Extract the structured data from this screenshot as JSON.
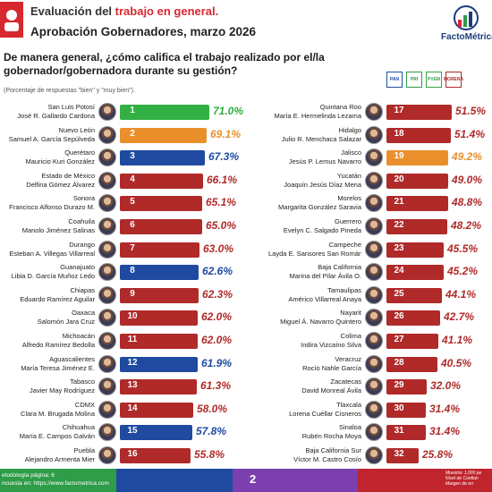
{
  "header": {
    "title_prefix": "Evaluación del ",
    "title_accent": "trabajo en general.",
    "subtitle": "Aprobación Gobernadores, marzo 2026",
    "brand": "FactoMétrica"
  },
  "question": {
    "text": "De manera general, ¿cómo califica el trabajo realizado por el/la gobernador/gobernadora durante su gestión?",
    "note": "(Porcentaje de respuestas \"bien\" y \"muy bien\")."
  },
  "party_legend": [
    {
      "label": "PAN",
      "color": "#1f4fa3"
    },
    {
      "label": "PRI",
      "color": "#2e9c48"
    },
    {
      "label": "PVEM",
      "color": "#35a546"
    },
    {
      "label": "MORENA",
      "color": "#b22a2a"
    }
  ],
  "colors": {
    "morena": "#b02a2a",
    "pan": "#1f4aa0",
    "mc": "#e9902c",
    "pvem": "#33b043",
    "pan_text": "#1f4aa0",
    "mc_text": "#e9902c",
    "morena_text": "#b02a2a",
    "pvem_text": "#2fae3e"
  },
  "chart_data": {
    "type": "bar",
    "ylabel": "",
    "xlabel": "",
    "ylim": [
      0,
      100
    ],
    "entries": [
      {
        "rank": "1",
        "state": "San Luis Potosí",
        "governor": "José R. Gallardo Cardona",
        "value": 71.0,
        "label": "71.0%",
        "party": "pvem"
      },
      {
        "rank": "2",
        "state": "Nuevo León",
        "governor": "Samuel A. García Sepúlveda",
        "value": 69.1,
        "label": "69.1%",
        "party": "mc"
      },
      {
        "rank": "3",
        "state": "Querétaro",
        "governor": "Mauricio Kuri González",
        "value": 67.3,
        "label": "67.3%",
        "party": "pan"
      },
      {
        "rank": "4",
        "state": "Estado de México",
        "governor": "Delfina Gómez Álvarez",
        "value": 66.1,
        "label": "66.1%",
        "party": "morena"
      },
      {
        "rank": "5",
        "state": "Sonora",
        "governor": "Francisco Alfonso Durazo M.",
        "value": 65.1,
        "label": "65.1%",
        "party": "morena"
      },
      {
        "rank": "6",
        "state": "Coahuila",
        "governor": "Manolo Jiménez Salinas",
        "value": 65.0,
        "label": "65.0%",
        "party": "morena"
      },
      {
        "rank": "7",
        "state": "Durango",
        "governor": "Esteban A. Villegas Villarreal",
        "value": 63.0,
        "label": "63.0%",
        "party": "morena"
      },
      {
        "rank": "8",
        "state": "Guanajuato",
        "governor": "Libia D. García Muñoz Ledo",
        "value": 62.6,
        "label": "62.6%",
        "party": "pan"
      },
      {
        "rank": "9",
        "state": "Chiapas",
        "governor": "Eduardo Ramírez Aguilar",
        "value": 62.3,
        "label": "62.3%",
        "party": "morena"
      },
      {
        "rank": "10",
        "state": "Oaxaca",
        "governor": "Salomón Jara Cruz",
        "value": 62.0,
        "label": "62.0%",
        "party": "morena"
      },
      {
        "rank": "11",
        "state": "Michoacán",
        "governor": "Alfredo Ramírez Bedolla",
        "value": 62.0,
        "label": "62.0%",
        "party": "morena"
      },
      {
        "rank": "12",
        "state": "Aguascalientes",
        "governor": "María Teresa Jiménez E.",
        "value": 61.9,
        "label": "61.9%",
        "party": "pan"
      },
      {
        "rank": "13",
        "state": "Tabasco",
        "governor": "Javier May Rodríguez",
        "value": 61.3,
        "label": "61.3%",
        "party": "morena"
      },
      {
        "rank": "14",
        "state": "CDMX",
        "governor": "Clara M. Brugada Molina",
        "value": 58.0,
        "label": "58.0%",
        "party": "morena"
      },
      {
        "rank": "15",
        "state": "Chihuahua",
        "governor": "María E. Campos Galván",
        "value": 57.8,
        "label": "57.8%",
        "party": "pan"
      },
      {
        "rank": "16",
        "state": "Puebla",
        "governor": "Alejandro Armenta Mier",
        "value": 55.8,
        "label": "55.8%",
        "party": "morena"
      },
      {
        "rank": "17",
        "state": "Quintana Roo",
        "governor": "María E. Hermelinda Lezama",
        "value": 51.5,
        "label": "51.5%",
        "party": "morena"
      },
      {
        "rank": "18",
        "state": "Hidalgo",
        "governor": "Julio R. Menchaca Salazar",
        "value": 51.4,
        "label": "51.4%",
        "party": "morena"
      },
      {
        "rank": "19",
        "state": "Jalisco",
        "governor": "Jesús P. Lemus Navarro",
        "value": 49.2,
        "label": "49.2%",
        "party": "mc"
      },
      {
        "rank": "20",
        "state": "Yucatán",
        "governor": "Joaquín Jesús Díaz Mena",
        "value": 49.0,
        "label": "49.0%",
        "party": "morena"
      },
      {
        "rank": "21",
        "state": "Morelos",
        "governor": "Margarita González Saravia",
        "value": 48.8,
        "label": "48.8%",
        "party": "morena"
      },
      {
        "rank": "22",
        "state": "Guerrero",
        "governor": "Evelyn C. Salgado Pineda",
        "value": 48.2,
        "label": "48.2%",
        "party": "morena"
      },
      {
        "rank": "23",
        "state": "Campeche",
        "governor": "Layda E. Sansores San Román",
        "value": 45.5,
        "label": "45.5%",
        "party": "morena"
      },
      {
        "rank": "24",
        "state": "Baja California",
        "governor": "Marina del Pilar Ávila O.",
        "value": 45.2,
        "label": "45.2%",
        "party": "morena"
      },
      {
        "rank": "25",
        "state": "Tamaulipas",
        "governor": "Américo Villarreal Anaya",
        "value": 44.1,
        "label": "44.1%",
        "party": "morena"
      },
      {
        "rank": "26",
        "state": "Nayarit",
        "governor": "Miguel Á. Navarro Quintero",
        "value": 42.7,
        "label": "42.7%",
        "party": "morena"
      },
      {
        "rank": "27",
        "state": "Colima",
        "governor": "Indira Vizcaíno Silva",
        "value": 41.1,
        "label": "41.1%",
        "party": "morena"
      },
      {
        "rank": "28",
        "state": "Veracruz",
        "governor": "Rocío Nahle García",
        "value": 40.5,
        "label": "40.5%",
        "party": "morena"
      },
      {
        "rank": "29",
        "state": "Zacatecas",
        "governor": "David Monreal Ávila",
        "value": 32.0,
        "label": "32.0%",
        "party": "morena"
      },
      {
        "rank": "30",
        "state": "Tlaxcala",
        "governor": "Lorena Cuéllar Cisneros",
        "value": 31.4,
        "label": "31.4%",
        "party": "morena"
      },
      {
        "rank": "31",
        "state": "Sinaloa",
        "governor": "Rubén Rocha Moya",
        "value": 31.4,
        "label": "31.4%",
        "party": "morena"
      },
      {
        "rank": "32",
        "state": "Baja California Sur",
        "governor": "Víctor M. Castro Cosío",
        "value": 25.8,
        "label": "25.8%",
        "party": "morena"
      }
    ]
  },
  "footer": {
    "left_line1": "etodología página: 6",
    "left_line2": "ncuesta en: https://www.factometrica.com",
    "page": "2",
    "right_line1": "Muestra: 1,000 pe",
    "right_line2": "Nivel de Confian",
    "right_line3": "Margen de err"
  }
}
